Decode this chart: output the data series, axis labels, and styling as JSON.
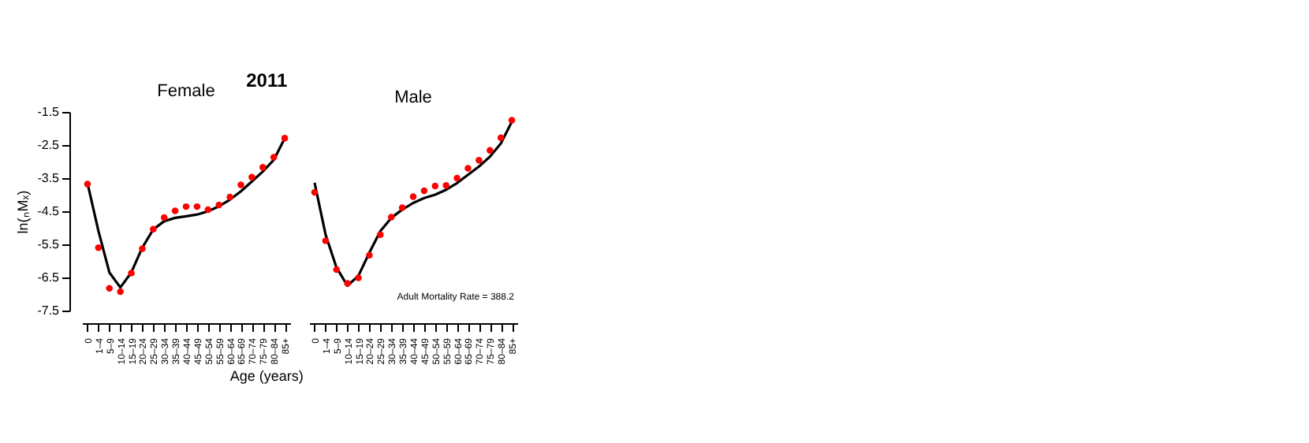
{
  "chart_data": [
    {
      "type": "scatter",
      "title": "2011",
      "subtitle": "Female",
      "xlabel": "Age (years)",
      "ylabel": "ln(ₙMₓ)",
      "categories": [
        "0",
        "1–4",
        "5–9",
        "10–14",
        "15–19",
        "20–24",
        "25–29",
        "30–34",
        "35–39",
        "40–44",
        "45–49",
        "50–54",
        "55–59",
        "60–64",
        "65–69",
        "70–74",
        "75–79",
        "80–84",
        "85+"
      ],
      "series": [
        {
          "type": "scatter",
          "color": "#ff0000",
          "marker": "circle",
          "values": [
            -3.68,
            -5.6,
            -6.83,
            -6.93,
            -6.37,
            -5.63,
            -5.04,
            -4.69,
            -4.49,
            -4.36,
            -4.36,
            -4.45,
            -4.31,
            -4.07,
            -3.7,
            -3.47,
            -3.17,
            -2.87,
            -2.29
          ]
        },
        {
          "type": "line",
          "color": "#000000",
          "line_style": "solid",
          "values": [
            -3.65,
            -5.1,
            -6.35,
            -6.8,
            -6.35,
            -5.6,
            -5.05,
            -4.8,
            -4.7,
            -4.65,
            -4.6,
            -4.5,
            -4.35,
            -4.15,
            -3.9,
            -3.6,
            -3.3,
            -2.95,
            -2.3
          ]
        }
      ],
      "ylim": [
        -7.5,
        -1.5
      ],
      "yticks": [
        -7.5,
        -6.5,
        -5.5,
        -4.5,
        -3.5,
        -2.5,
        -1.5
      ],
      "grid": false,
      "legend": false
    },
    {
      "type": "scatter",
      "subtitle": "Male",
      "categories": [
        "0",
        "1–4",
        "5–9",
        "10–14",
        "15–19",
        "20–24",
        "25–29",
        "30–34",
        "35–39",
        "40–44",
        "45–49",
        "50–54",
        "55–59",
        "60–64",
        "65–69",
        "70–74",
        "75–79",
        "80–84",
        "85+"
      ],
      "series": [
        {
          "type": "scatter",
          "color": "#ff0000",
          "marker": "circle",
          "values": [
            -3.93,
            -5.39,
            -6.26,
            -6.68,
            -6.51,
            -5.83,
            -5.21,
            -4.68,
            -4.39,
            -4.06,
            -3.88,
            -3.74,
            -3.72,
            -3.5,
            -3.2,
            -2.96,
            -2.66,
            -2.28,
            -1.75
          ]
        },
        {
          "type": "line",
          "color": "#000000",
          "line_style": "solid",
          "values": [
            -3.64,
            -5.2,
            -6.2,
            -6.75,
            -6.45,
            -5.75,
            -5.1,
            -4.7,
            -4.45,
            -4.25,
            -4.1,
            -4.0,
            -3.85,
            -3.65,
            -3.4,
            -3.15,
            -2.85,
            -2.45,
            -1.8
          ]
        }
      ],
      "annotations": [
        "Adult Mortality Rate = 388.2"
      ],
      "ylim": [
        -7.5,
        -1.5
      ],
      "grid": false,
      "legend": false,
      "tick_labels": "x"
    }
  ]
}
